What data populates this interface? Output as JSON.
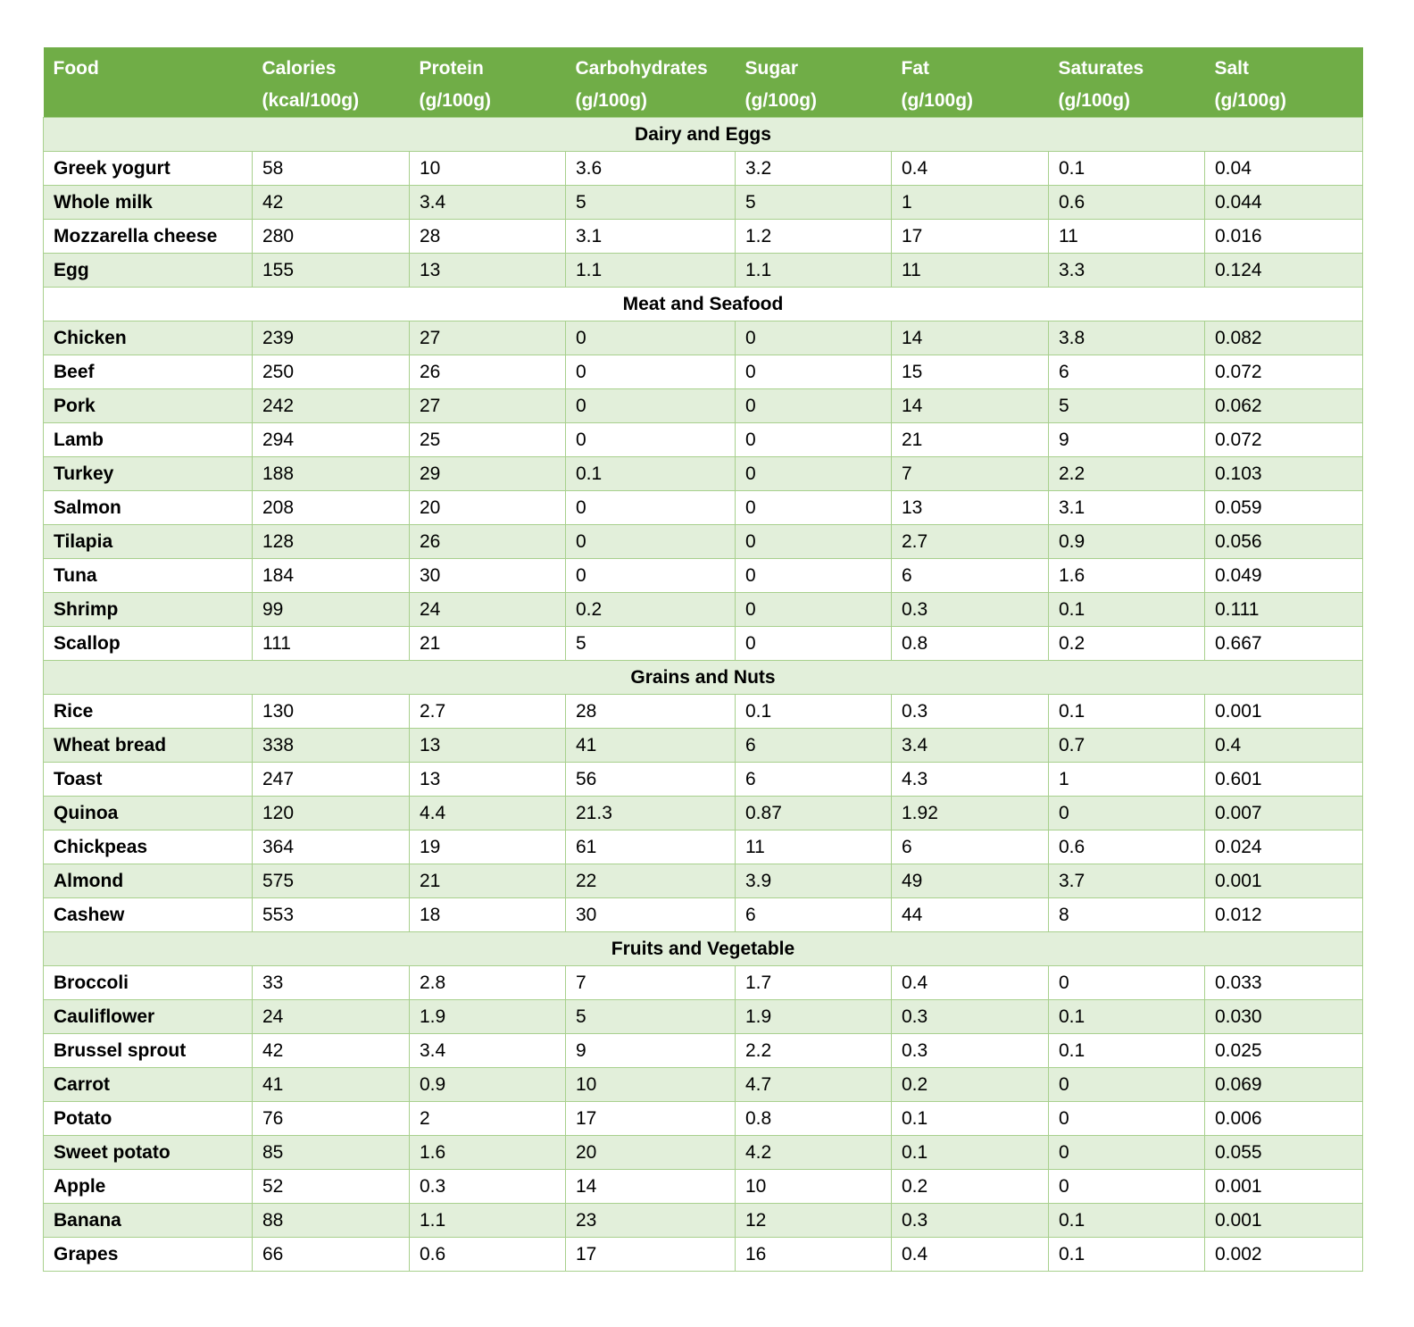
{
  "colors": {
    "header_bg": "#70ad47",
    "header_text": "#ffffff",
    "band_shade": "#e2efda",
    "grid_line": "#a8d08d"
  },
  "header": {
    "columns": [
      {
        "name": "Food",
        "unit": ""
      },
      {
        "name": "Calories",
        "unit": "(kcal/100g)"
      },
      {
        "name": "Protein",
        "unit": "(g/100g)"
      },
      {
        "name": "Carbohydrates",
        "unit": "(g/100g)"
      },
      {
        "name": "Sugar",
        "unit": "(g/100g)"
      },
      {
        "name": "Fat",
        "unit": "(g/100g)"
      },
      {
        "name": "Saturates",
        "unit": "(g/100g)"
      },
      {
        "name": "Salt",
        "unit": "(g/100g)"
      }
    ]
  },
  "categories": [
    {
      "title": "Dairy and Eggs",
      "rows": [
        [
          "Greek yogurt",
          "58",
          "10",
          "3.6",
          "3.2",
          "0.4",
          "0.1",
          "0.04"
        ],
        [
          "Whole milk",
          "42",
          "3.4",
          "5",
          "5",
          "1",
          "0.6",
          "0.044"
        ],
        [
          "Mozzarella cheese",
          "280",
          "28",
          "3.1",
          "1.2",
          "17",
          "11",
          "0.016"
        ],
        [
          "Egg",
          "155",
          "13",
          "1.1",
          "1.1",
          "11",
          "3.3",
          "0.124"
        ]
      ]
    },
    {
      "title": "Meat and Seafood",
      "rows": [
        [
          "Chicken",
          "239",
          "27",
          "0",
          "0",
          "14",
          "3.8",
          "0.082"
        ],
        [
          "Beef",
          "250",
          "26",
          "0",
          "0",
          "15",
          "6",
          "0.072"
        ],
        [
          "Pork",
          "242",
          "27",
          "0",
          "0",
          "14",
          "5",
          "0.062"
        ],
        [
          "Lamb",
          "294",
          "25",
          "0",
          "0",
          "21",
          "9",
          "0.072"
        ],
        [
          "Turkey",
          "188",
          "29",
          "0.1",
          "0",
          "7",
          "2.2",
          "0.103"
        ],
        [
          "Salmon",
          "208",
          "20",
          "0",
          "0",
          "13",
          "3.1",
          "0.059"
        ],
        [
          "Tilapia",
          "128",
          "26",
          "0",
          "0",
          "2.7",
          "0.9",
          "0.056"
        ],
        [
          "Tuna",
          "184",
          "30",
          "0",
          "0",
          "6",
          "1.6",
          "0.049"
        ],
        [
          "Shrimp",
          "99",
          "24",
          "0.2",
          "0",
          "0.3",
          "0.1",
          "0.111"
        ],
        [
          "Scallop",
          "111",
          "21",
          "5",
          "0",
          "0.8",
          "0.2",
          "0.667"
        ]
      ]
    },
    {
      "title": "Grains and Nuts",
      "rows": [
        [
          "Rice",
          "130",
          "2.7",
          "28",
          "0.1",
          "0.3",
          "0.1",
          "0.001"
        ],
        [
          "Wheat bread",
          "338",
          "13",
          "41",
          "6",
          "3.4",
          "0.7",
          "0.4"
        ],
        [
          "Toast",
          "247",
          "13",
          "56",
          "6",
          "4.3",
          "1",
          "0.601"
        ],
        [
          "Quinoa",
          "120",
          "4.4",
          "21.3",
          "0.87",
          "1.92",
          "0",
          "0.007"
        ],
        [
          "Chickpeas",
          "364",
          "19",
          "61",
          "11",
          "6",
          "0.6",
          "0.024"
        ],
        [
          "Almond",
          "575",
          "21",
          "22",
          "3.9",
          "49",
          "3.7",
          "0.001"
        ],
        [
          "Cashew",
          "553",
          "18",
          "30",
          "6",
          "44",
          "8",
          "0.012"
        ]
      ]
    },
    {
      "title": "Fruits and Vegetable",
      "rows": [
        [
          "Broccoli",
          "33",
          "2.8",
          "7",
          "1.7",
          "0.4",
          "0",
          "0.033"
        ],
        [
          "Cauliflower",
          "24",
          "1.9",
          "5",
          "1.9",
          "0.3",
          "0.1",
          "0.030"
        ],
        [
          "Brussel sprout",
          "42",
          "3.4",
          "9",
          "2.2",
          "0.3",
          "0.1",
          "0.025"
        ],
        [
          "Carrot",
          "41",
          "0.9",
          "10",
          "4.7",
          "0.2",
          "0",
          "0.069"
        ],
        [
          "Potato",
          "76",
          "2",
          "17",
          "0.8",
          "0.1",
          "0",
          "0.006"
        ],
        [
          "Sweet potato",
          "85",
          "1.6",
          "20",
          "4.2",
          "0.1",
          "0",
          "0.055"
        ],
        [
          "Apple",
          "52",
          "0.3",
          "14",
          "10",
          "0.2",
          "0",
          "0.001"
        ],
        [
          "Banana",
          "88",
          "1.1",
          "23",
          "12",
          "0.3",
          "0.1",
          "0.001"
        ],
        [
          "Grapes",
          "66",
          "0.6",
          "17",
          "16",
          "0.4",
          "0.1",
          "0.002"
        ]
      ]
    }
  ]
}
